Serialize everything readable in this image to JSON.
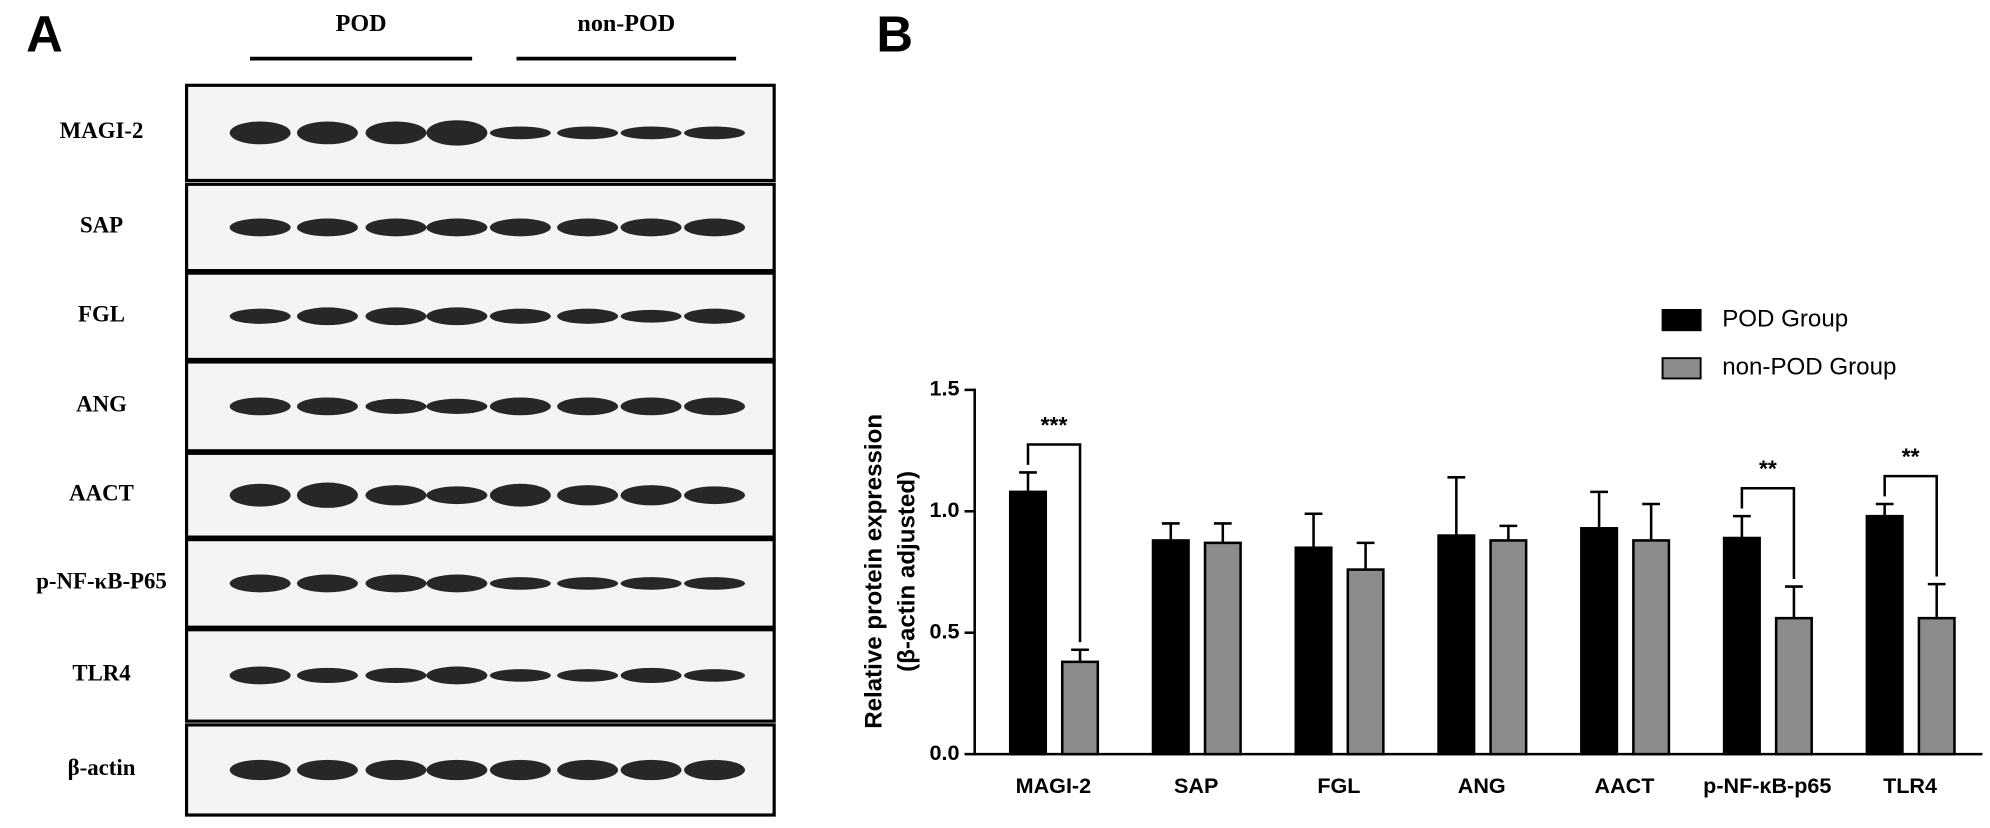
{
  "panel_a": {
    "label": "A",
    "groups": [
      "POD",
      "non-POD"
    ],
    "rows": [
      "MAGI-2",
      "SAP",
      "FGL",
      "ANG",
      "AACT",
      "p-NF-κB-P65",
      "TLR4",
      "β-actin"
    ]
  },
  "chart_data": {
    "type": "bar",
    "panel_label": "B",
    "ylabel": [
      "Relative protein expression",
      "(β-actin adjusted)"
    ],
    "categories": [
      "MAGI-2",
      "SAP",
      "FGL",
      "ANG",
      "AACT",
      "p-NF-κB-p65",
      "TLR4"
    ],
    "series": [
      {
        "name": "POD Group",
        "color": "#000000",
        "values": [
          1.08,
          0.88,
          0.85,
          0.9,
          0.93,
          0.89,
          0.98
        ],
        "errors": [
          0.08,
          0.07,
          0.14,
          0.24,
          0.15,
          0.09,
          0.05
        ]
      },
      {
        "name": "non-POD Group",
        "color": "#8c8c8c",
        "values": [
          0.38,
          0.87,
          0.76,
          0.88,
          0.88,
          0.56,
          0.56
        ],
        "errors": [
          0.05,
          0.08,
          0.11,
          0.06,
          0.15,
          0.13,
          0.14
        ]
      }
    ],
    "annotations": [
      {
        "category": "MAGI-2",
        "text": "***"
      },
      {
        "category": "p-NF-κB-p65",
        "text": "**"
      },
      {
        "category": "TLR4",
        "text": "**"
      }
    ],
    "ylim": [
      0,
      1.5
    ],
    "yticks": [
      {
        "value": 0,
        "label": "0.0"
      },
      {
        "value": 0.5,
        "label": "0.5"
      },
      {
        "value": 1.0,
        "label": "1.0"
      },
      {
        "value": 1.5,
        "label": "1.5"
      }
    ],
    "legend": "upper right"
  }
}
